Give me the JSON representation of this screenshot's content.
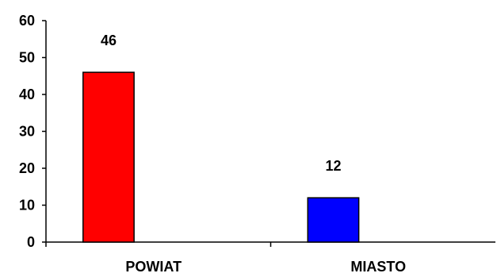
{
  "chart_data": {
    "type": "bar",
    "categories": [
      "POWIAT",
      "MIASTO"
    ],
    "values": [
      46,
      12
    ],
    "data_labels": [
      "46",
      "12"
    ],
    "bar_colors": [
      "#ff0000",
      "#0000ff"
    ],
    "ylim": [
      0,
      60
    ],
    "yticks": [
      0,
      10,
      20,
      30,
      40,
      50,
      60
    ],
    "ytick_labels": [
      "0",
      "10",
      "20",
      "30",
      "40",
      "50",
      "60"
    ],
    "grid": false,
    "legend": "none"
  }
}
